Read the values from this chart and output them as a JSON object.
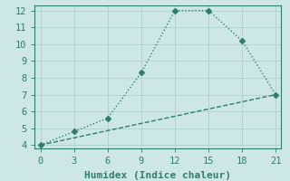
{
  "line1_x": [
    0,
    3,
    6,
    9,
    12,
    15,
    18,
    21
  ],
  "line1_y": [
    4.0,
    4.8,
    5.6,
    8.3,
    12.0,
    12.0,
    10.2,
    7.0
  ],
  "line2_x": [
    0,
    21
  ],
  "line2_y": [
    4.0,
    7.0
  ],
  "color": "#2e7d6e",
  "bg_color": "#cde8e4",
  "grid_color": "#aecfcb",
  "xlabel": "Humidex (Indice chaleur)",
  "xlim": [
    -0.5,
    21.5
  ],
  "ylim": [
    3.8,
    12.3
  ],
  "xticks": [
    0,
    3,
    6,
    9,
    12,
    15,
    18,
    21
  ],
  "yticks": [
    4,
    5,
    6,
    7,
    8,
    9,
    10,
    11,
    12
  ],
  "marker": "D",
  "markersize": 3,
  "linewidth": 1.0,
  "line1_style": ":",
  "line2_style": "--",
  "font_size": 7.5,
  "label_fontsize": 8
}
